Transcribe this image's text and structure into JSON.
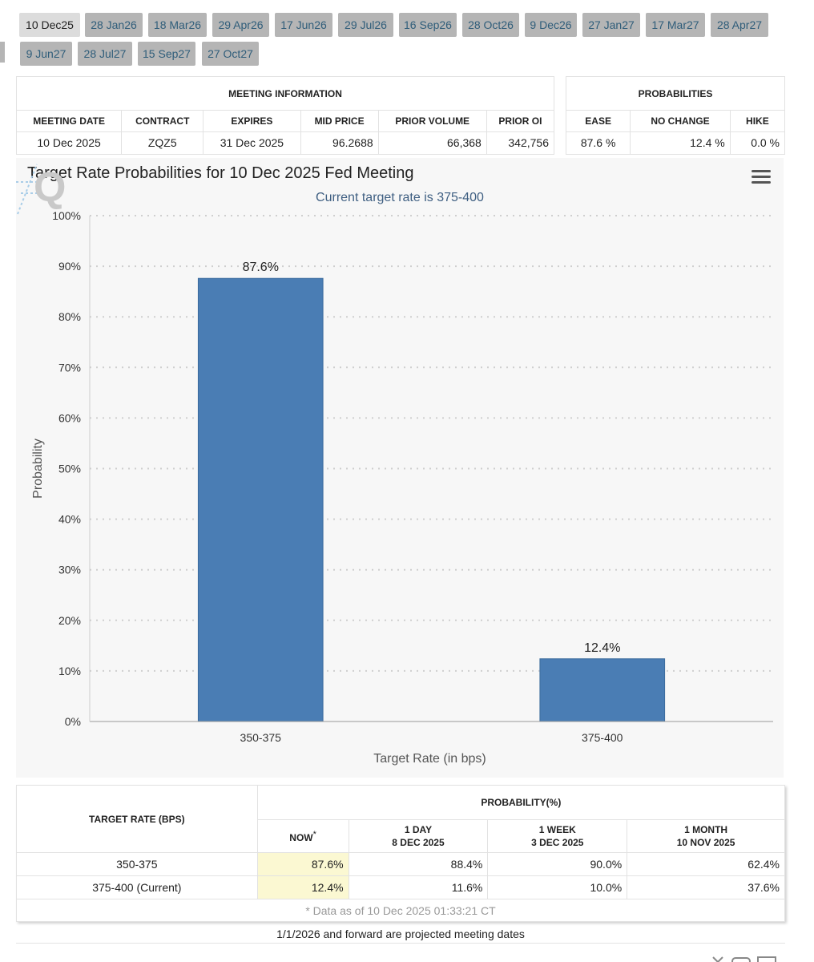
{
  "tabs": [
    "10 Dec25",
    "28 Jan26",
    "18 Mar26",
    "29 Apr26",
    "17 Jun26",
    "29 Jul26",
    "16 Sep26",
    "28 Oct26",
    "9 Dec26",
    "27 Jan27",
    "17 Mar27",
    "28 Apr27",
    "9 Jun27",
    "28 Jul27",
    "15 Sep27",
    "27 Oct27"
  ],
  "active_tab": "10 Dec25",
  "meeting_info": {
    "title": "MEETING INFORMATION",
    "columns": [
      "MEETING DATE",
      "CONTRACT",
      "EXPIRES",
      "MID PRICE",
      "PRIOR VOLUME",
      "PRIOR OI"
    ],
    "row": [
      "10 Dec 2025",
      "ZQZ5",
      "31 Dec 2025",
      "96.2688",
      "66,368",
      "342,756"
    ]
  },
  "probabilities": {
    "title": "PROBABILITIES",
    "columns": [
      "EASE",
      "NO CHANGE",
      "HIKE"
    ],
    "row": [
      "87.6 %",
      "12.4 %",
      "0.0 %"
    ]
  },
  "chart_data": {
    "type": "bar",
    "title": "Target Rate Probabilities for 10 Dec 2025 Fed Meeting",
    "subtitle": "Current target rate is 375-400",
    "categories": [
      "350-375",
      "375-400"
    ],
    "values": [
      87.6,
      12.4
    ],
    "data_labels": [
      "87.6%",
      "12.4%"
    ],
    "xlabel": "Target Rate (in bps)",
    "ylabel": "Probability",
    "yticks": [
      "0%",
      "10%",
      "20%",
      "30%",
      "40%",
      "50%",
      "60%",
      "70%",
      "80%",
      "90%",
      "100%"
    ],
    "ylim": [
      0,
      100
    ],
    "grid": true,
    "bar_color": "#4a7db4"
  },
  "prob_table": {
    "rate_header": "TARGET RATE (BPS)",
    "prob_header": "PROBABILITY(%)",
    "now": "NOW",
    "now_mark": "*",
    "day_label": "1 DAY",
    "day_date": "8 DEC 2025",
    "week_label": "1 WEEK",
    "week_date": "3 DEC 2025",
    "month_label": "1 MONTH",
    "month_date": "10 NOV 2025",
    "rows": [
      [
        "350-375",
        "87.6%",
        "88.4%",
        "90.0%",
        "62.4%"
      ],
      [
        "375-400 (Current)",
        "12.4%",
        "11.6%",
        "10.0%",
        "37.6%"
      ]
    ],
    "footnote": "* Data as of 10 Dec 2025 01:33:21 CT"
  },
  "note": "1/1/2026 and forward are projected meeting dates",
  "colors": {
    "tab": "#b5b5b5",
    "tab_active": "#dcdcdc",
    "tab_text": "#2f5d7a",
    "highlight": "#fbf8d2",
    "subtitle": "#3f5f82"
  }
}
